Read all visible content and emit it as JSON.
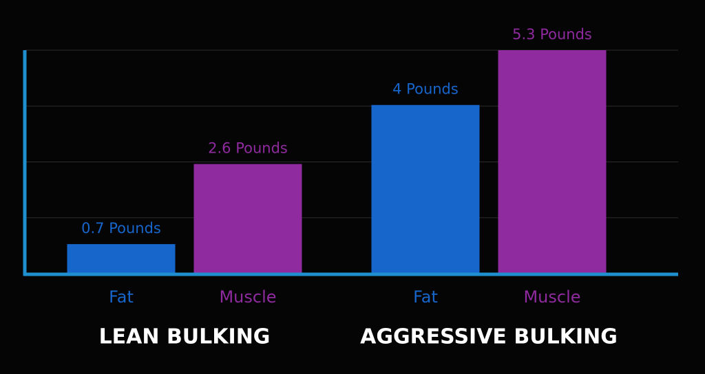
{
  "chart_data": {
    "type": "bar",
    "categories": [
      "LEAN BULKING",
      "AGGRESSIVE BULKING"
    ],
    "series": [
      {
        "name": "Fat",
        "color": "#1766cc",
        "values": [
          0.7,
          4
        ],
        "value_labels": [
          "0.7 Pounds",
          "4 Pounds"
        ]
      },
      {
        "name": "Muscle",
        "color": "#8f2a9f",
        "values": [
          2.6,
          5.3
        ],
        "value_labels": [
          "2.6 Pounds",
          "5.3 Pounds"
        ]
      }
    ],
    "ylim": [
      0,
      5.3
    ],
    "yticks": [
      0,
      1.325,
      2.65,
      3.975,
      5.3
    ],
    "grid": true,
    "axis_color": "#1f8fcf"
  }
}
